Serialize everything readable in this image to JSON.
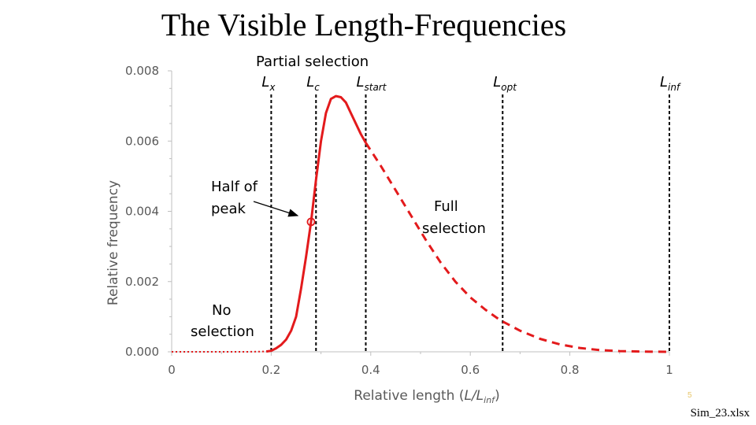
{
  "slide": {
    "title": "The Visible Length-Frequencies",
    "page_number": "5",
    "footer": "Sim_23.xlsx"
  },
  "chart_data": {
    "type": "line",
    "xlabel": "Relative length (L/L",
    "xlabel_sub": "inf",
    "xlabel_close": ")",
    "ylabel": "Relative frequency",
    "xlim": [
      0,
      1
    ],
    "ylim": [
      0,
      0.008
    ],
    "x_ticks": [
      0,
      0.2,
      0.4,
      0.6,
      0.8,
      1
    ],
    "x_tick_labels": [
      "0",
      "0.2",
      "0.4",
      "0.6",
      "0.8",
      "1"
    ],
    "y_ticks": [
      0,
      0.002,
      0.004,
      0.006,
      0.008
    ],
    "y_tick_labels": [
      "0.000",
      "0.002",
      "0.004",
      "0.006",
      "0.008"
    ],
    "grid": false,
    "series": [
      {
        "style": "dotted",
        "color": "#e31a1c",
        "x": [
          0,
          0.05,
          0.1,
          0.15,
          0.19
        ],
        "y": [
          0,
          0,
          0,
          0,
          1e-05
        ]
      },
      {
        "style": "solid",
        "color": "#e31a1c",
        "x": [
          0.19,
          0.2,
          0.21,
          0.22,
          0.23,
          0.24,
          0.25,
          0.26,
          0.27,
          0.28,
          0.29,
          0.3,
          0.31,
          0.32,
          0.33,
          0.34,
          0.35,
          0.36,
          0.37,
          0.38,
          0.39
        ],
        "y": [
          1e-05,
          3e-05,
          0.0001,
          0.0002,
          0.00035,
          0.0006,
          0.001,
          0.0018,
          0.0027,
          0.0037,
          0.0049,
          0.006,
          0.0068,
          0.0072,
          0.00728,
          0.00725,
          0.0071,
          0.0068,
          0.0065,
          0.0062,
          0.00595
        ]
      },
      {
        "style": "dashed",
        "color": "#e31a1c",
        "x": [
          0.39,
          0.42,
          0.45,
          0.48,
          0.51,
          0.54,
          0.57,
          0.6,
          0.63,
          0.66,
          0.7,
          0.74,
          0.78,
          0.82,
          0.86,
          0.9,
          0.95,
          1
        ],
        "y": [
          0.00595,
          0.0053,
          0.0046,
          0.0039,
          0.0032,
          0.00255,
          0.002,
          0.00155,
          0.0012,
          0.0009,
          0.0006,
          0.00037,
          0.00021,
          0.00011,
          5e-05,
          2e-05,
          5e-06,
          0
        ]
      }
    ],
    "half_peak_point": {
      "x": 0.28,
      "y": 0.0037,
      "color": "#e31a1c"
    },
    "vertical_lines": [
      {
        "x": 0.2,
        "label": "L",
        "sub": "x"
      },
      {
        "x": 0.29,
        "label": "L",
        "sub": "c"
      },
      {
        "x": 0.39,
        "label": "L",
        "sub": "start"
      },
      {
        "x": 0.665,
        "label": "L",
        "sub": "opt"
      },
      {
        "x": 1.0,
        "label": "L",
        "sub": "inf"
      }
    ],
    "annotations": {
      "partial_selection": "Partial selection",
      "half_of_peak_line1": "Half of",
      "half_of_peak_line2": "peak",
      "full_selection_line1": "Full",
      "full_selection_line2": "selection",
      "no_selection_line1": "No",
      "no_selection_line2": "selection"
    }
  }
}
